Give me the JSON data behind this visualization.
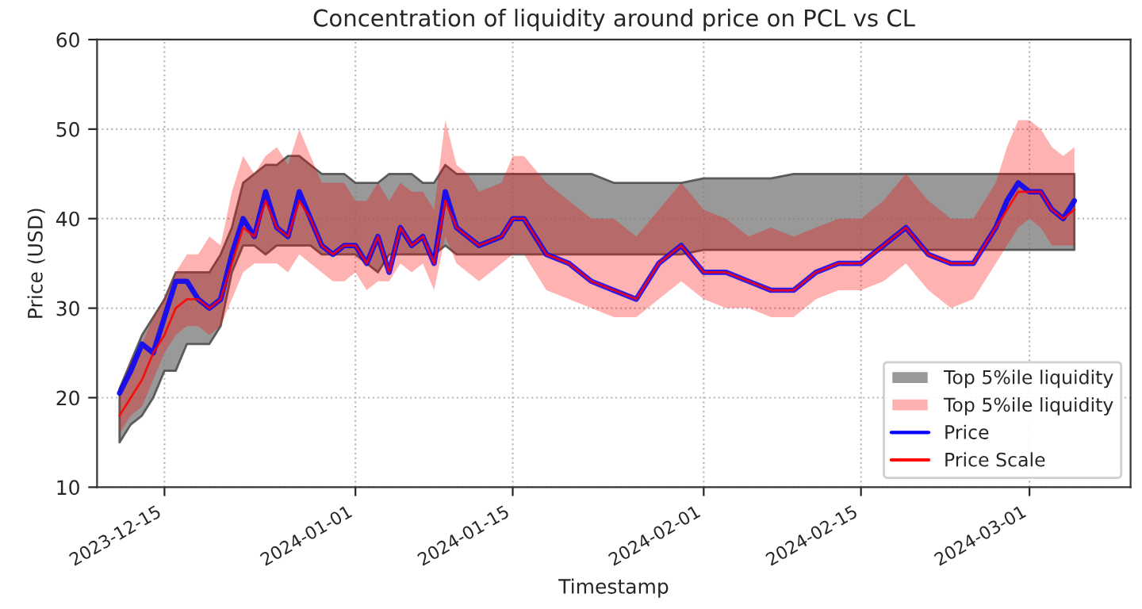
{
  "chart_data": {
    "type": "line",
    "title": "Concentration of liquidity around price on PCL vs CL",
    "xlabel": "Timestamp",
    "ylabel": "Price (USD)",
    "x": [
      "2023-12-11",
      "2023-12-12",
      "2023-12-13",
      "2023-12-14",
      "2023-12-15",
      "2023-12-16",
      "2023-12-17",
      "2023-12-18",
      "2023-12-19",
      "2023-12-20",
      "2023-12-21",
      "2023-12-22",
      "2023-12-23",
      "2023-12-24",
      "2023-12-25",
      "2023-12-26",
      "2023-12-27",
      "2023-12-28",
      "2023-12-29",
      "2023-12-30",
      "2023-12-31",
      "2024-01-01",
      "2024-01-02",
      "2024-01-03",
      "2024-01-04",
      "2024-01-05",
      "2024-01-06",
      "2024-01-07",
      "2024-01-08",
      "2024-01-09",
      "2024-01-10",
      "2024-01-11",
      "2024-01-12",
      "2024-01-14",
      "2024-01-15",
      "2024-01-16",
      "2024-01-18",
      "2024-01-20",
      "2024-01-22",
      "2024-01-24",
      "2024-01-26",
      "2024-01-28",
      "2024-01-30",
      "2024-02-01",
      "2024-02-03",
      "2024-02-05",
      "2024-02-07",
      "2024-02-09",
      "2024-02-11",
      "2024-02-13",
      "2024-02-15",
      "2024-02-17",
      "2024-02-19",
      "2024-02-21",
      "2024-02-23",
      "2024-02-25",
      "2024-02-27",
      "2024-02-28",
      "2024-02-29",
      "2024-03-01",
      "2024-03-02",
      "2024-03-03",
      "2024-03-04",
      "2024-03-05"
    ],
    "series": [
      {
        "name": "Top 5%ile liquidity",
        "type": "area",
        "color": "#808080",
        "values": [
          null,
          null,
          null,
          null,
          null,
          null,
          null,
          null,
          null,
          null,
          null,
          null,
          null,
          null,
          null,
          null,
          null,
          null,
          null,
          null,
          null,
          null,
          null,
          null,
          null,
          null,
          null,
          null,
          null,
          null,
          null,
          null,
          null,
          null,
          null,
          null,
          null,
          null,
          null,
          null,
          null,
          null,
          null,
          null,
          null,
          null,
          null,
          null,
          null,
          null,
          null,
          null,
          null,
          null,
          null,
          null,
          null,
          null,
          null,
          null,
          null,
          null,
          null,
          null
        ],
        "lower": [
          15,
          17,
          18,
          20,
          23,
          23,
          26,
          26,
          26,
          28,
          34,
          37,
          37,
          36,
          37,
          37,
          37,
          37,
          36,
          36,
          36,
          36,
          35,
          34,
          36,
          36,
          36,
          36,
          36,
          37,
          36,
          36,
          36,
          36,
          36,
          36,
          36,
          36,
          36,
          36,
          36,
          36,
          36,
          36.5,
          36.5,
          36.5,
          36.5,
          36.5,
          36.5,
          36.5,
          36.5,
          36.5,
          36.5,
          36.5,
          36.5,
          36.5,
          36.5,
          36.5,
          36.5,
          36.5,
          36.5,
          36.5,
          36.5,
          36.5
        ],
        "upper": [
          21,
          24,
          27,
          29,
          31,
          34,
          34,
          34,
          34,
          36,
          39,
          44,
          45,
          46,
          46,
          47,
          47,
          46,
          45,
          45,
          45,
          44,
          44,
          44,
          45,
          45,
          45,
          44,
          44,
          46,
          45,
          45,
          45,
          45,
          45,
          45,
          45,
          45,
          45,
          44,
          44,
          44,
          44,
          44.5,
          44.5,
          44.5,
          44.5,
          45,
          45,
          45,
          45,
          45,
          45,
          45,
          45,
          45,
          45,
          45,
          45,
          45,
          45,
          45,
          45,
          45
        ]
      },
      {
        "name": "Top 5%ile liquidity",
        "type": "area",
        "color": "#ff0000",
        "values": [
          null,
          null,
          null,
          null,
          null,
          null,
          null,
          null,
          null,
          null,
          null,
          null,
          null,
          null,
          null,
          null,
          null,
          null,
          null,
          null,
          null,
          null,
          null,
          null,
          null,
          null,
          null,
          null,
          null,
          null,
          null,
          null,
          null,
          null,
          null,
          null,
          null,
          null,
          null,
          null,
          null,
          null,
          null,
          null,
          null,
          null,
          null,
          null,
          null,
          null,
          null,
          null,
          null,
          null,
          null,
          null,
          null,
          null,
          null,
          null,
          null,
          null,
          null,
          null
        ],
        "lower": [
          16,
          18,
          19,
          22,
          25,
          27,
          28,
          28,
          27,
          28,
          31,
          34,
          35,
          35,
          35,
          34,
          36,
          35,
          34,
          33,
          33,
          34,
          32,
          33,
          33,
          35,
          34,
          35,
          32,
          38,
          35,
          34,
          33,
          35,
          36,
          36,
          32,
          31,
          30,
          29,
          29,
          31,
          33,
          31,
          30,
          30,
          29,
          29,
          31,
          32,
          32,
          33,
          35,
          32,
          30,
          31,
          35,
          37,
          39,
          40,
          39,
          37,
          37,
          37
        ],
        "upper": [
          21,
          24,
          26,
          29,
          31,
          34,
          36,
          36,
          38,
          37,
          43,
          47,
          45,
          47,
          48,
          46,
          50,
          47,
          44,
          44,
          44,
          42,
          42,
          44,
          42,
          44,
          43,
          43,
          41,
          51,
          46,
          45,
          43,
          44,
          47,
          47,
          44,
          42,
          40,
          40,
          38,
          41,
          44,
          41,
          40,
          38,
          39,
          38,
          39,
          40,
          40,
          42,
          45,
          42,
          40,
          40,
          44,
          48,
          51,
          51,
          50,
          48,
          47,
          48
        ]
      },
      {
        "name": "Price",
        "color": "#0000ff",
        "values": [
          20.5,
          23,
          26,
          25,
          29,
          33,
          33,
          31,
          30,
          31,
          36,
          40,
          38,
          43,
          39,
          38,
          43,
          40,
          37,
          36,
          37,
          37,
          35,
          38,
          34,
          39,
          37,
          38,
          35,
          43,
          39,
          38,
          37,
          38,
          40,
          40,
          36,
          35,
          33,
          32,
          31,
          35,
          37,
          34,
          34,
          33,
          32,
          32,
          34,
          35,
          35,
          37,
          39,
          36,
          35,
          35,
          39,
          42,
          44,
          43,
          43,
          41,
          40,
          42
        ]
      },
      {
        "name": "Price Scale",
        "color": "#ff0000",
        "values": [
          18,
          20,
          22,
          25,
          27,
          30,
          31,
          31,
          30,
          31,
          35,
          39,
          38,
          42,
          39,
          38,
          42,
          40,
          37,
          36,
          37,
          37,
          35,
          38,
          34,
          39,
          37,
          38,
          35,
          42,
          39,
          38,
          37,
          38,
          40,
          40,
          36,
          35,
          33,
          32,
          31,
          35,
          37,
          34,
          34,
          33,
          32,
          32,
          34,
          35,
          35,
          37,
          39,
          36,
          35,
          35,
          39,
          41,
          43,
          43,
          43,
          41,
          40,
          41
        ]
      }
    ],
    "xlim": [
      "2023-12-09",
      "2024-03-10"
    ],
    "xticks": [
      "2023-12-15",
      "2024-01-01",
      "2024-01-15",
      "2024-02-01",
      "2024-02-15",
      "2024-03-01"
    ],
    "ylim": [
      10,
      60
    ],
    "yticks": [
      10,
      20,
      30,
      40,
      50,
      60
    ],
    "grid": true,
    "legend": "lower right"
  }
}
